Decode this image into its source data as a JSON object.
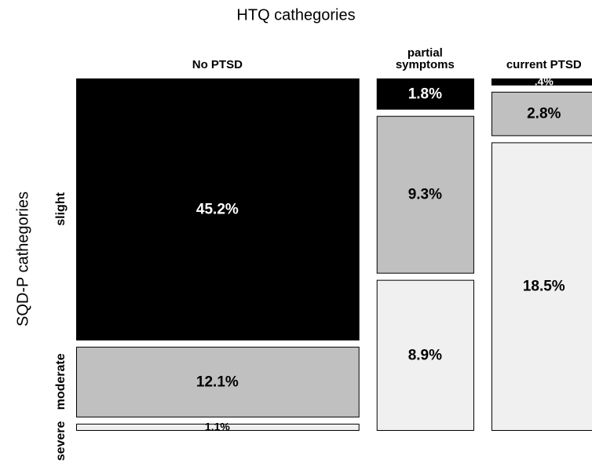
{
  "chart_data": {
    "type": "mosaic",
    "title": "HTQ cathegories",
    "y_label": "SQD-P cathegories",
    "categories": [
      "No PTSD",
      "partial symptoms",
      "current PTSD"
    ],
    "series": [
      {
        "name": "slight",
        "color": "#000000",
        "values": [
          45.2,
          1.8,
          0.4
        ],
        "value_labels": [
          "45.2%",
          "1.8%",
          ".4%"
        ]
      },
      {
        "name": "moderate",
        "color": "#c0c0c0",
        "values": [
          12.1,
          9.3,
          2.8
        ],
        "value_labels": [
          "12.1%",
          "9.3%",
          "2.8%"
        ]
      },
      {
        "name": "severe",
        "color": "#f0f0f0",
        "values": [
          1.1,
          8.9,
          18.5
        ],
        "value_labels": [
          "1.1%",
          "8.9%",
          "18.5%"
        ]
      }
    ]
  }
}
